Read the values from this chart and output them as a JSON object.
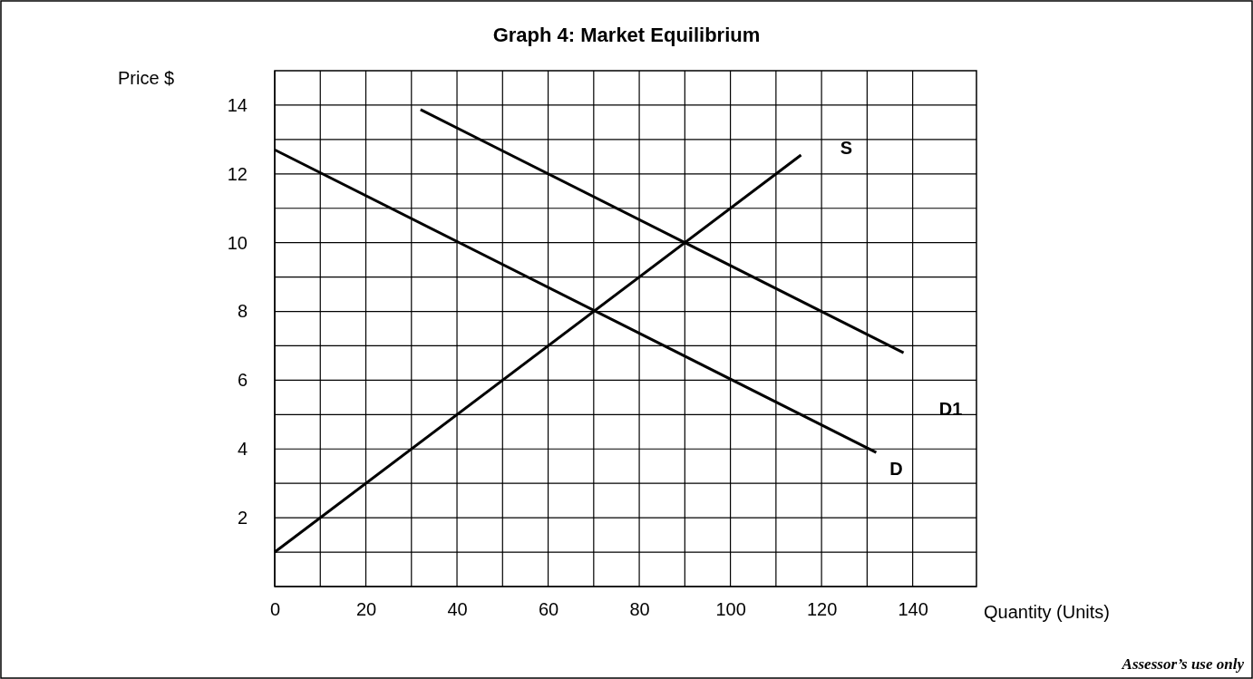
{
  "chart_data": {
    "type": "line",
    "title": "Graph 4:  Market Equilibrium",
    "xlabel": "Quantity (Units)",
    "ylabel": "Price  $",
    "xlim": [
      0,
      154
    ],
    "xticks": [
      0,
      20,
      40,
      60,
      80,
      100,
      120,
      140
    ],
    "ylim": [
      0,
      15
    ],
    "yticks": [
      2,
      4,
      6,
      8,
      10,
      12,
      14
    ],
    "grid": true,
    "marker": "none",
    "line_style": "solid",
    "series": [
      {
        "name": "S",
        "color": "#000000",
        "x": [
          0,
          115.5
        ],
        "values": [
          1,
          12.55
        ]
      },
      {
        "name": "D",
        "color": "#000000",
        "x": [
          0,
          132
        ],
        "values": [
          12.7,
          3.9
        ]
      },
      {
        "name": "D1",
        "color": "#000000",
        "x": [
          32,
          138
        ],
        "values": [
          13.87,
          6.8
        ]
      }
    ],
    "annotations": [
      "Assessor’s use only"
    ]
  }
}
